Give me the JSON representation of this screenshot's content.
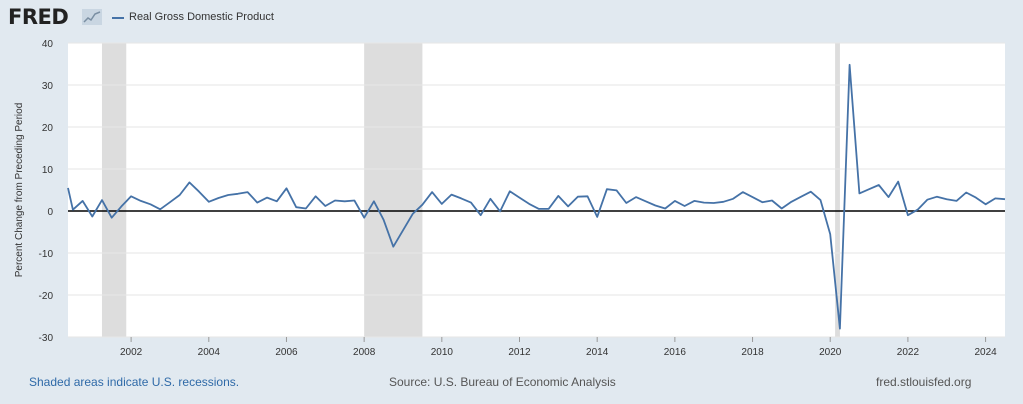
{
  "header": {
    "logo_text": "FRED",
    "logo_mark": "chart-line-logo-icon",
    "legend_label": "Real Gross Domestic Product"
  },
  "footer": {
    "recession_note": "Shaded areas indicate U.S. recessions.",
    "source": "Source: U.S. Bureau of Economic Analysis",
    "site": "fred.stlouisfed.org"
  },
  "colors": {
    "line": "#4572a7",
    "recession": "#dddddd",
    "background": "#e1e9f0",
    "plot": "#ffffff",
    "zero_line": "#000000",
    "note": "#2f6aa8"
  },
  "chart_data": {
    "type": "line",
    "title": "",
    "ylabel": "Percent Change from Preceding Period",
    "xlabel": "",
    "xlim": [
      2000.375,
      2024.5
    ],
    "ylim": [
      -30,
      40
    ],
    "y_ticks": [
      -30,
      -20,
      -10,
      0,
      10,
      20,
      30,
      40
    ],
    "y_tick_labels": [
      "-30",
      "-20",
      "-10",
      "0",
      "10",
      "20",
      "30",
      "40"
    ],
    "x_ticks": [
      2002,
      2004,
      2006,
      2008,
      2010,
      2012,
      2014,
      2016,
      2018,
      2020,
      2022,
      2024
    ],
    "x_tick_labels": [
      "2002",
      "2004",
      "2006",
      "2008",
      "2010",
      "2012",
      "2014",
      "2016",
      "2018",
      "2020",
      "2022",
      "2024"
    ],
    "grid": "horizontal",
    "legend_position": "top-left",
    "recessions": [
      {
        "start": 2001.25,
        "end": 2001.875
      },
      {
        "start": 2008.0,
        "end": 2009.5
      },
      {
        "start": 2020.125,
        "end": 2020.25
      }
    ],
    "series": [
      {
        "name": "Real Gross Domestic Product",
        "x": [
          2000.375,
          2000.5,
          2000.75,
          2001.0,
          2001.25,
          2001.5,
          2001.75,
          2002.0,
          2002.25,
          2002.5,
          2002.75,
          2003.0,
          2003.25,
          2003.5,
          2003.75,
          2004.0,
          2004.25,
          2004.5,
          2004.75,
          2005.0,
          2005.25,
          2005.5,
          2005.75,
          2006.0,
          2006.25,
          2006.5,
          2006.75,
          2007.0,
          2007.25,
          2007.5,
          2007.75,
          2008.0,
          2008.25,
          2008.5,
          2008.75,
          2009.0,
          2009.25,
          2009.5,
          2009.75,
          2010.0,
          2010.25,
          2010.5,
          2010.75,
          2011.0,
          2011.25,
          2011.5,
          2011.75,
          2012.0,
          2012.25,
          2012.5,
          2012.75,
          2013.0,
          2013.25,
          2013.5,
          2013.75,
          2014.0,
          2014.25,
          2014.5,
          2014.75,
          2015.0,
          2015.25,
          2015.5,
          2015.75,
          2016.0,
          2016.25,
          2016.5,
          2016.75,
          2017.0,
          2017.25,
          2017.5,
          2017.75,
          2018.0,
          2018.25,
          2018.5,
          2018.75,
          2019.0,
          2019.25,
          2019.5,
          2019.75,
          2020.0,
          2020.25,
          2020.5,
          2020.75,
          2021.0,
          2021.25,
          2021.5,
          2021.75,
          2022.0,
          2022.25,
          2022.5,
          2022.75,
          2023.0,
          2023.25,
          2023.5,
          2023.75,
          2024.0,
          2024.25,
          2024.5
        ],
        "values": [
          5.5,
          0.3,
          2.4,
          -1.3,
          2.6,
          -1.6,
          1.1,
          3.5,
          2.4,
          1.6,
          0.4,
          2.1,
          3.8,
          6.8,
          4.6,
          2.2,
          3.1,
          3.8,
          4.1,
          4.5,
          2.0,
          3.2,
          2.3,
          5.4,
          0.9,
          0.6,
          3.5,
          1.2,
          2.5,
          2.3,
          2.5,
          -1.6,
          2.3,
          -2.1,
          -8.5,
          -4.6,
          -0.7,
          1.5,
          4.5,
          1.7,
          3.9,
          3.0,
          2.0,
          -1.0,
          2.9,
          -0.1,
          4.7,
          3.2,
          1.7,
          0.5,
          0.5,
          3.6,
          1.1,
          3.4,
          3.5,
          -1.4,
          5.2,
          4.9,
          1.9,
          3.3,
          2.3,
          1.3,
          0.6,
          2.4,
          1.2,
          2.4,
          2.0,
          1.9,
          2.2,
          2.9,
          4.5,
          3.3,
          2.1,
          2.5,
          0.6,
          2.2,
          3.4,
          4.6,
          2.6,
          -5.5,
          -28.0,
          34.8,
          4.2,
          5.2,
          6.2,
          3.3,
          7.0,
          -1.0,
          0.3,
          2.7,
          3.4,
          2.8,
          2.4,
          4.4,
          3.2,
          1.6,
          3.0,
          2.8
        ]
      }
    ]
  }
}
